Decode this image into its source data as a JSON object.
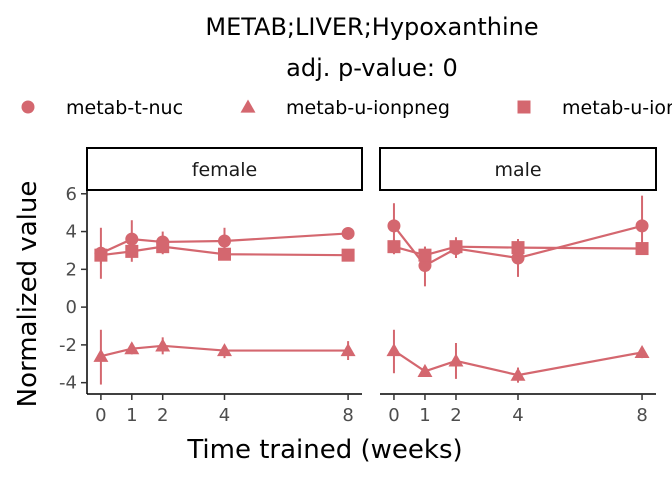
{
  "chart_data": {
    "type": "line",
    "title": "METAB;LIVER;Hypoxanthine",
    "subtitle": "adj. p-value: 0",
    "xlabel": "Time trained (weeks)",
    "ylabel": "Normalized value",
    "x_ticks": [
      0,
      1,
      2,
      4,
      8
    ],
    "y_ticks": [
      -4,
      -2,
      0,
      2,
      4,
      6
    ],
    "xlim": [
      -0.45,
      8.45
    ],
    "ylim": [
      -4.6,
      6.2
    ],
    "color": "#d4676f",
    "legend_position": "top",
    "legend": [
      {
        "label": "metab-t-nuc",
        "shape": "circle"
      },
      {
        "label": "metab-u-ionpneg",
        "shape": "triangle"
      },
      {
        "label": "metab-u-ionpneg",
        "shape": "square"
      }
    ],
    "facets": [
      {
        "label": "female",
        "series": [
          {
            "shape": "circle",
            "points": [
              {
                "x": 0,
                "y": 2.85,
                "lo": 1.5,
                "hi": 4.2
              },
              {
                "x": 1,
                "y": 3.6,
                "lo": 2.7,
                "hi": 4.6
              },
              {
                "x": 2,
                "y": 3.45,
                "lo": 2.9,
                "hi": 4.0
              },
              {
                "x": 4,
                "y": 3.5,
                "lo": 2.8,
                "hi": 4.2
              },
              {
                "x": 8,
                "y": 3.9,
                "lo": 3.7,
                "hi": 4.1
              }
            ]
          },
          {
            "shape": "square",
            "points": [
              {
                "x": 0,
                "y": 2.75,
                "lo": 2.3,
                "hi": 3.2
              },
              {
                "x": 1,
                "y": 2.95,
                "lo": 2.4,
                "hi": 3.5
              },
              {
                "x": 2,
                "y": 3.2,
                "lo": 2.8,
                "hi": 3.6
              },
              {
                "x": 4,
                "y": 2.8,
                "lo": 2.5,
                "hi": 3.1
              },
              {
                "x": 8,
                "y": 2.75,
                "lo": 2.5,
                "hi": 3.0
              }
            ]
          },
          {
            "shape": "triangle",
            "points": [
              {
                "x": 0,
                "y": -2.6,
                "lo": -4.1,
                "hi": -1.2
              },
              {
                "x": 1,
                "y": -2.2,
                "lo": -2.5,
                "hi": -1.9
              },
              {
                "x": 2,
                "y": -2.05,
                "lo": -2.5,
                "hi": -1.6
              },
              {
                "x": 4,
                "y": -2.3,
                "lo": -2.7,
                "hi": -2.0
              },
              {
                "x": 8,
                "y": -2.3,
                "lo": -2.8,
                "hi": -1.8
              }
            ]
          }
        ]
      },
      {
        "label": "male",
        "series": [
          {
            "shape": "circle",
            "points": [
              {
                "x": 0,
                "y": 4.3,
                "lo": 3.1,
                "hi": 5.5
              },
              {
                "x": 1,
                "y": 2.2,
                "lo": 1.1,
                "hi": 3.2
              },
              {
                "x": 2,
                "y": 3.1,
                "lo": 2.6,
                "hi": 3.6
              },
              {
                "x": 4,
                "y": 2.6,
                "lo": 1.6,
                "hi": 3.6
              },
              {
                "x": 8,
                "y": 4.3,
                "lo": 2.8,
                "hi": 5.9
              }
            ]
          },
          {
            "shape": "square",
            "points": [
              {
                "x": 0,
                "y": 3.2,
                "lo": 2.8,
                "hi": 3.6
              },
              {
                "x": 1,
                "y": 2.75,
                "lo": 2.3,
                "hi": 3.2
              },
              {
                "x": 2,
                "y": 3.2,
                "lo": 2.7,
                "hi": 3.7
              },
              {
                "x": 4,
                "y": 3.15,
                "lo": 2.7,
                "hi": 3.6
              },
              {
                "x": 8,
                "y": 3.1,
                "lo": 2.8,
                "hi": 3.4
              }
            ]
          },
          {
            "shape": "triangle",
            "points": [
              {
                "x": 0,
                "y": -2.3,
                "lo": -3.5,
                "hi": -1.2
              },
              {
                "x": 1,
                "y": -3.4,
                "lo": -3.6,
                "hi": -3.2
              },
              {
                "x": 2,
                "y": -2.85,
                "lo": -3.8,
                "hi": -1.9
              },
              {
                "x": 4,
                "y": -3.6,
                "lo": -4.0,
                "hi": -3.2
              },
              {
                "x": 8,
                "y": -2.4,
                "lo": -2.7,
                "hi": -2.1
              }
            ]
          }
        ]
      }
    ]
  }
}
